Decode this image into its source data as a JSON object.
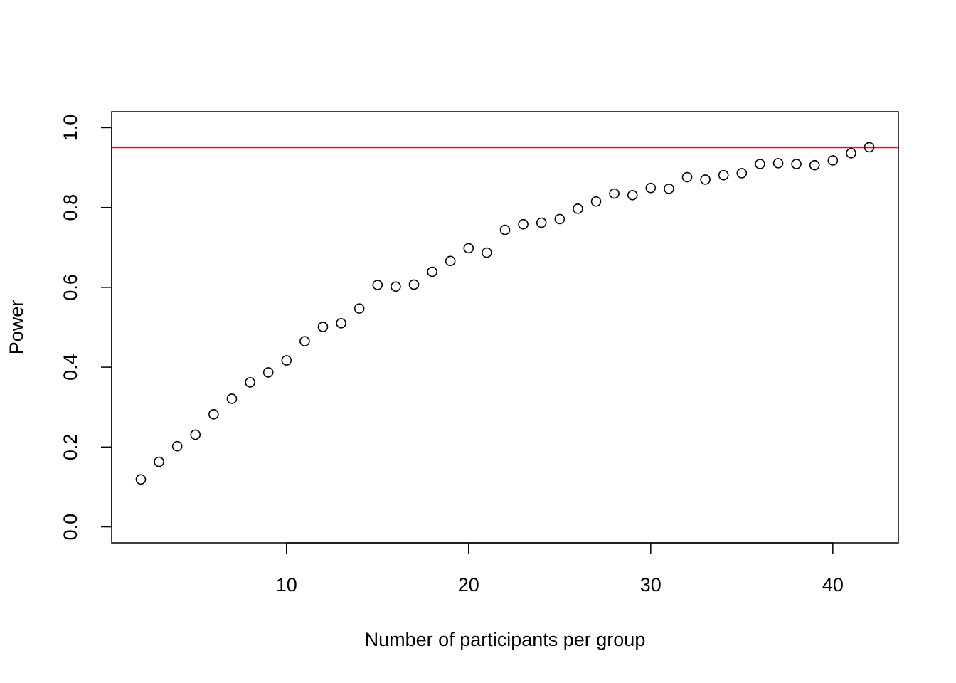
{
  "chart_data": {
    "type": "scatter",
    "x_label": "Number of participants per group",
    "y_label": "Power",
    "x": [
      2,
      3,
      4,
      5,
      6,
      7,
      8,
      9,
      10,
      11,
      12,
      13,
      14,
      15,
      16,
      17,
      18,
      19,
      20,
      21,
      22,
      23,
      24,
      25,
      26,
      27,
      28,
      29,
      30,
      31,
      32,
      33,
      34,
      35,
      36,
      37,
      38,
      39,
      40,
      41,
      42
    ],
    "values": [
      0.119,
      0.163,
      0.202,
      0.231,
      0.282,
      0.321,
      0.362,
      0.387,
      0.417,
      0.465,
      0.501,
      0.51,
      0.547,
      0.606,
      0.602,
      0.607,
      0.639,
      0.666,
      0.698,
      0.687,
      0.744,
      0.758,
      0.762,
      0.771,
      0.797,
      0.815,
      0.835,
      0.831,
      0.849,
      0.847,
      0.876,
      0.87,
      0.881,
      0.886,
      0.909,
      0.911,
      0.909,
      0.906,
      0.918,
      0.936,
      0.951
    ],
    "color": "#000000",
    "hline": 0.95,
    "hline_color": "#ff0000",
    "xlim": [
      0.4,
      43.6
    ],
    "ylim": [
      -0.04,
      1.04
    ],
    "xticks": [
      10,
      20,
      30,
      40
    ],
    "yticks": [
      {
        "value": 0,
        "label": "0.0"
      },
      0.2,
      0.4,
      0.6,
      0.8,
      {
        "value": 1,
        "label": "1.0"
      }
    ]
  }
}
